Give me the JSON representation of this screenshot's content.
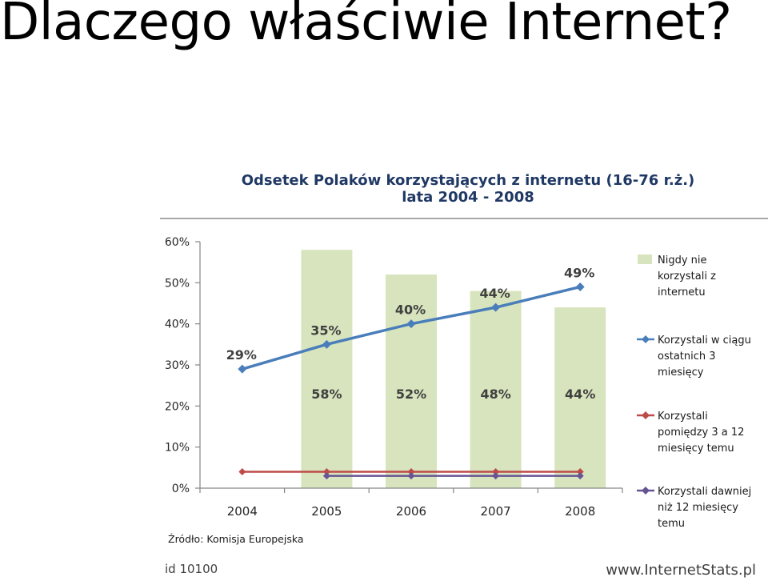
{
  "slide": {
    "title": "Dlaczego właściwie Internet?"
  },
  "chart_data": {
    "type": "bar+line",
    "title_lines": [
      "Odsetek Polaków korzystających  z internetu (16-76 r.ż.)",
      "lata 2004 - 2008"
    ],
    "categories": [
      "2004",
      "2005",
      "2006",
      "2007",
      "2008"
    ],
    "ylim": [
      0,
      60
    ],
    "yticks": [
      0,
      10,
      20,
      30,
      40,
      50,
      60
    ],
    "ytick_labels": [
      "0%",
      "10%",
      "20%",
      "30%",
      "40%",
      "50%",
      "60%"
    ],
    "grid": false,
    "legend_position": "right",
    "series": [
      {
        "name_lines": [
          "Nigdy nie",
          "korzystali z",
          "internetu"
        ],
        "kind": "bar",
        "values": [
          null,
          58,
          52,
          48,
          44
        ],
        "labels": [
          "",
          "58%",
          "52%",
          "48%",
          "44%"
        ],
        "color": "#d7e4bd"
      },
      {
        "name_lines": [
          "Korzystali w ciągu",
          "ostatnich 3",
          "miesięcy"
        ],
        "kind": "line",
        "values": [
          29,
          35,
          40,
          44,
          49
        ],
        "labels": [
          "29%",
          "35%",
          "40%",
          "44%",
          "49%"
        ],
        "color": "#4a7ebb"
      },
      {
        "name_lines": [
          "Korzystali",
          "pomiędzy 3 a 12",
          "miesięcy temu"
        ],
        "kind": "line",
        "values": [
          4,
          4,
          4,
          4,
          4
        ],
        "color": "#be4b48"
      },
      {
        "name_lines": [
          "Korzystali dawniej",
          "niż 12 miesięcy",
          "temu"
        ],
        "kind": "line",
        "values": [
          null,
          3,
          3,
          3,
          3
        ],
        "color": "#675494"
      }
    ],
    "source": "Źródło: Komisja Europejska"
  },
  "footer": {
    "id_label": "id 10100",
    "site": "www.InternetStats.pl"
  }
}
